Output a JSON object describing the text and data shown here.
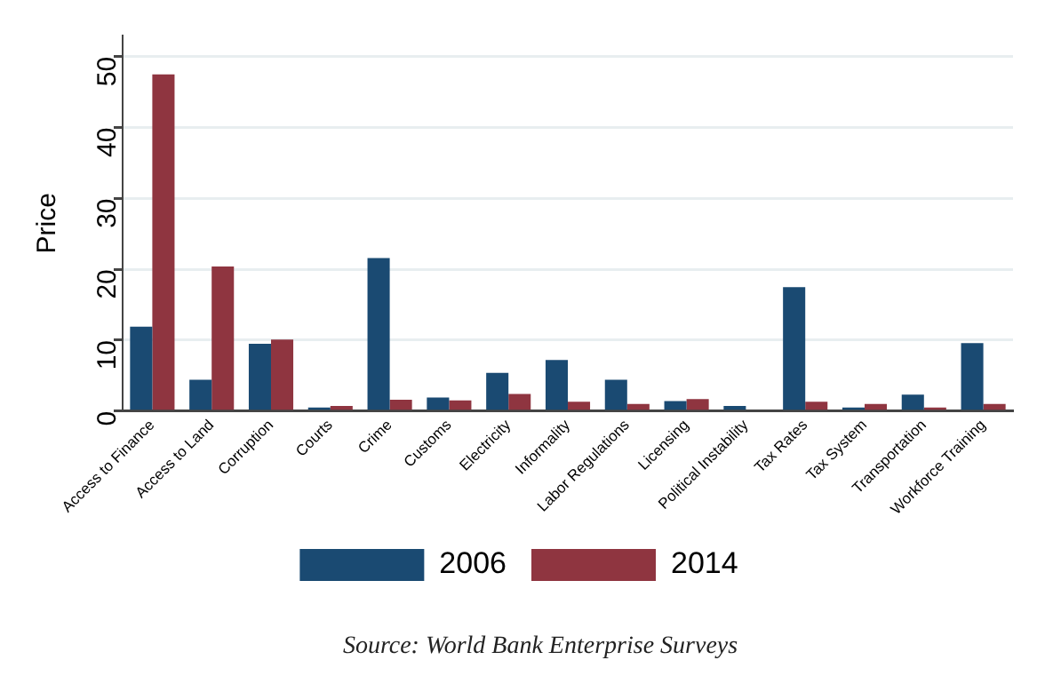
{
  "chart_data": {
    "type": "bar",
    "ylabel": "Price",
    "categories": [
      "Access to Finance",
      "Access to Land",
      "Corruption",
      "Courts",
      "Crime",
      "Customs",
      "Electricity",
      "Informality",
      "Labor Regulations",
      "Licensing",
      "Political Instability",
      "Tax Rates",
      "Tax System",
      "Transportation",
      "Workforce Training"
    ],
    "series": [
      {
        "name": "2006",
        "color": "#1a4a72",
        "values": [
          11.9,
          4.4,
          9.5,
          0.5,
          21.6,
          1.9,
          5.4,
          7.2,
          4.4,
          1.4,
          0.7,
          17.5,
          0.2,
          2.3,
          9.6
        ]
      },
      {
        "name": "2014",
        "color": "#8f3540",
        "values": [
          47.5,
          20.4,
          10.1,
          0.7,
          1.6,
          1.5,
          2.4,
          1.3,
          1.0,
          1.7,
          null,
          1.3,
          1.0,
          0.4,
          1.0
        ]
      }
    ],
    "ylim": [
      0,
      53
    ],
    "yticks": [
      0,
      10,
      20,
      30,
      40,
      50
    ],
    "grid": "y",
    "legend": "bottom",
    "annotations": [
      "Source: World Bank Enterprise Surveys"
    ]
  }
}
